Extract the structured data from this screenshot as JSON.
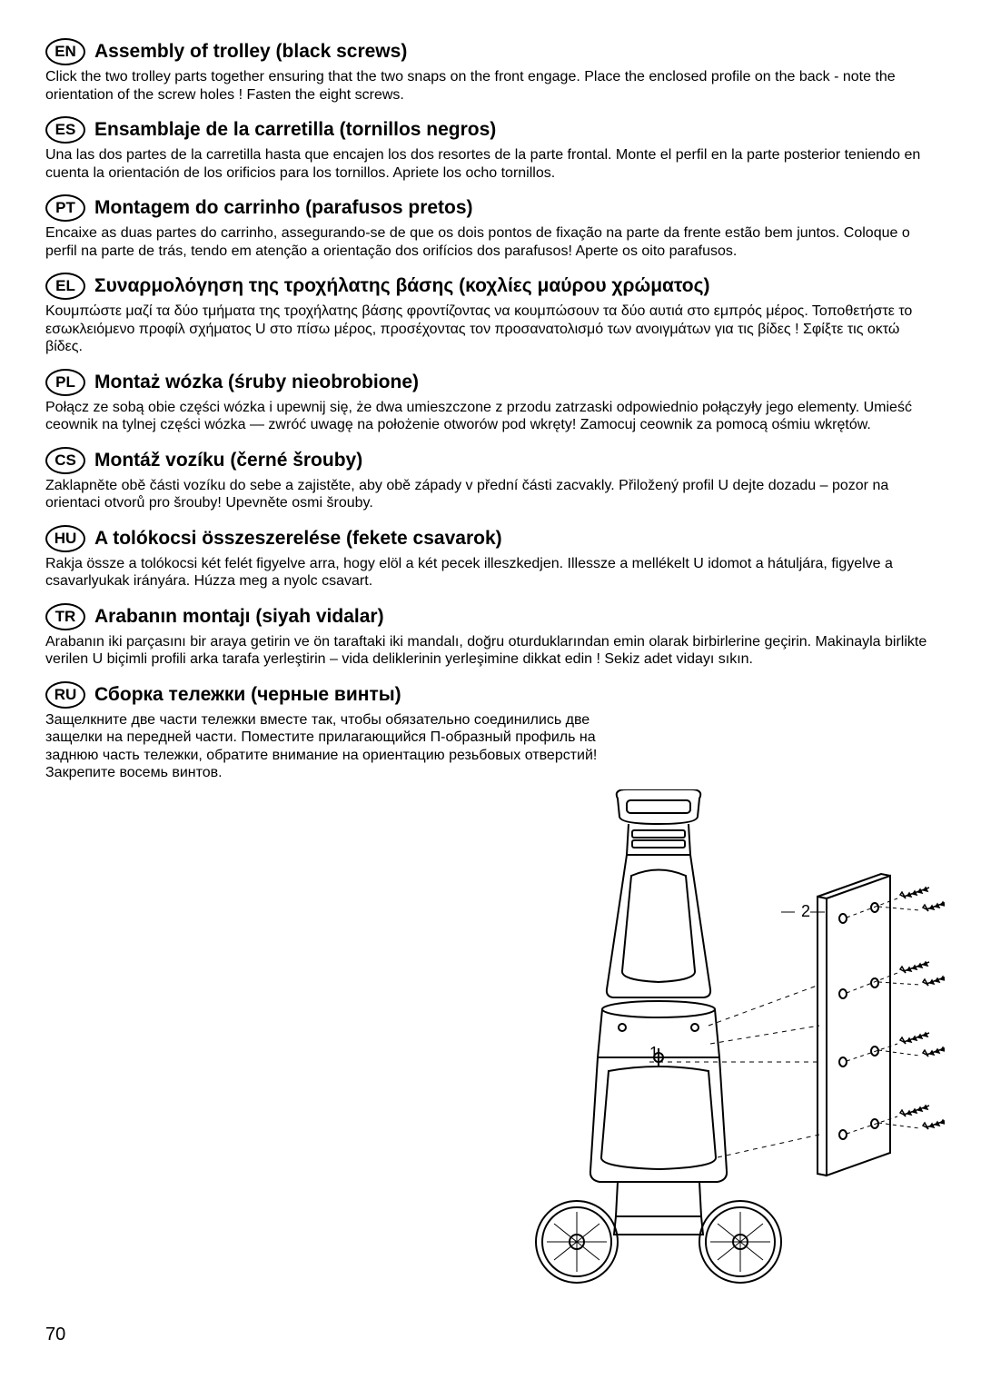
{
  "sections": [
    {
      "lang": "EN",
      "title": "Assembly of trolley (black screws)",
      "body": "Click the two trolley parts together ensuring that the two snaps on the front engage. Place the enclosed profile on the back - note the orientation of the screw holes ! Fasten the eight screws."
    },
    {
      "lang": "ES",
      "title": "Ensamblaje de la carretilla (tornillos negros)",
      "body": "Una las dos partes de la carretilla hasta que encajen los dos resortes de la parte frontal. Monte el perfil en la parte posterior teniendo en cuenta la orientación de los orificios para los tornillos. Apriete los ocho tornillos."
    },
    {
      "lang": "PT",
      "title": "Montagem do carrinho (parafusos pretos)",
      "body": "Encaixe as duas partes do carrinho, assegurando-se de que os dois pontos de fixação na parte da frente estão bem juntos. Coloque o perfil na parte de trás, tendo em atenção a orientação dos orifícios dos parafusos! Aperte os oito parafusos."
    },
    {
      "lang": "EL",
      "title": "Συναρμολόγηση της τροχήλατης βάσης (κοχλίες μαύρου χρώματος)",
      "body": "Κουμπώστε μαζί τα δύο τμήματα της τροχήλατης βάσης φροντίζοντας να κουμπώσουν τα δύο αυτιά στο εμπρός μέρος. Τοποθετήστε το εσωκλειόμενο προφίλ σχήματος U στο πίσω μέρος, προσέχοντας τον προσανατολισμό των ανοιγμάτων για τις βίδες ! Σφίξτε τις οκτώ βίδες."
    },
    {
      "lang": "PL",
      "title": "Montaż wózka (śruby nieobrobione)",
      "body": "Połącz ze sobą obie części wózka i upewnij się, że dwa umieszczone z przodu zatrzaski odpowiednio połączyły jego elementy. Umieść ceownik na tylnej części wózka — zwróć uwagę na położenie otworów pod wkręty! Zamocuj ceownik za pomocą ośmiu wkrętów."
    },
    {
      "lang": "CS",
      "title": "Montáž vozíku (černé šrouby)",
      "body": "Zaklapněte obě části vozíku do sebe a zajistěte, aby obě západy v přední části zacvakly. Přiložený profil U dejte dozadu – pozor na orientaci otvorů pro šrouby! Upevněte osmi šrouby."
    },
    {
      "lang": "HU",
      "title": "A tolókocsi összeszerelése (fekete csavarok)",
      "body": "Rakja össze a tolókocsi két felét figyelve arra, hogy elöl a két pecek illeszkedjen. Illessze a mellékelt U idomot a hátuljára, figyelve a csavarlyukak irányára. Húzza meg a nyolc csavart."
    },
    {
      "lang": "TR",
      "title": "Arabanın montajı (siyah vidalar)",
      "body": "Arabanın iki parçasını bir araya getirin ve ön taraftaki iki mandalı, doğru oturduklarından emin olarak birbirlerine geçirin. Makinayla birlikte verilen U biçimli profili arka tarafa yerleştirin – vida deliklerinin yerleşimine dikkat edin ! Sekiz adet vidayı sıkın."
    },
    {
      "lang": "RU",
      "title": "Сборка тележки (черные винты)",
      "body": "Защелкните две части тележки вместе так, чтобы обязательно соединились две защелки на передней части. Поместите прилагающийся П-образный профиль на заднюю часть тележки, обратите внимание на ориентацию резьбовых отверстий! Закрепите восемь винтов."
    }
  ],
  "diagram": {
    "labels": {
      "part1": "1",
      "part2": "2"
    },
    "stroke": "#000000",
    "background": "#ffffff"
  },
  "page_number": "70"
}
